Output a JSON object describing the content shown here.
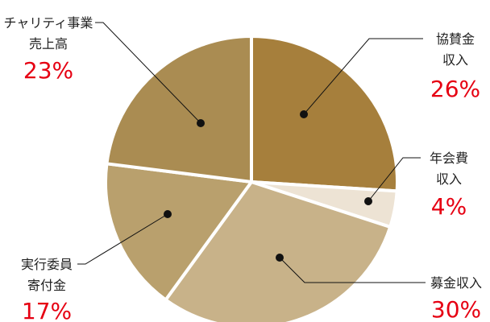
{
  "chart_data": {
    "type": "pie",
    "slices": [
      {
        "label_lines": [
          "協賛金",
          "収入"
        ],
        "value": 26,
        "pct_label": "26%",
        "color": "#a67f3c"
      },
      {
        "label_lines": [
          "年会費",
          "収入"
        ],
        "value": 4,
        "pct_label": "4%",
        "color": "#ede3d4"
      },
      {
        "label_lines": [
          "募金収入"
        ],
        "value": 30,
        "pct_label": "30%",
        "color": "#c8b289"
      },
      {
        "label_lines": [
          "実行委員",
          "寄付金"
        ],
        "value": 17,
        "pct_label": "17%",
        "color": "#b9a06d"
      },
      {
        "label_lines": [
          "チャリティ事業",
          "売上高"
        ],
        "value": 23,
        "pct_label": "23%",
        "color": "#aa8c52"
      }
    ],
    "start_angle_deg": 0,
    "direction": "clockwise",
    "legend": "none",
    "label_color": "#222222",
    "percent_color": "#e60012",
    "separator_color": "#ffffff"
  }
}
